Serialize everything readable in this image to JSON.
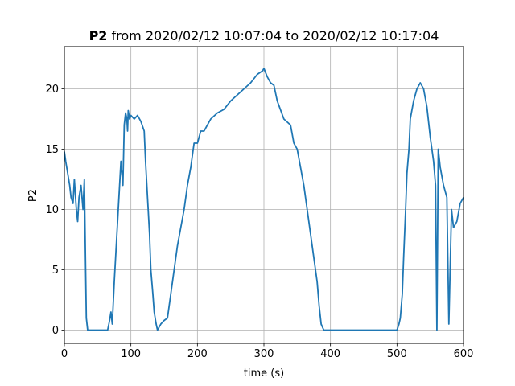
{
  "chart_data": {
    "type": "line",
    "title": {
      "bold_part": "P2",
      "rest": " from 2020/02/12 10:07:04 to 2020/02/12 10:17:04"
    },
    "xlabel": "time (s)",
    "ylabel": "P2",
    "xlim": [
      0,
      600
    ],
    "ylim": [
      -1.1,
      23.5
    ],
    "xticks": [
      0,
      100,
      200,
      300,
      400,
      500,
      600
    ],
    "yticks": [
      0,
      5,
      10,
      15,
      20
    ],
    "grid": true,
    "series_color": "#1f77b4",
    "series": [
      {
        "x": [
          0,
          2,
          5,
          8,
          10,
          13,
          15,
          18,
          20,
          22,
          25,
          28,
          30,
          33,
          35,
          40,
          50,
          60,
          65,
          68,
          70,
          72,
          75,
          80,
          85,
          88,
          90,
          92,
          94,
          95,
          96,
          98,
          100,
          105,
          110,
          115,
          120,
          122,
          125,
          128,
          130,
          133,
          135,
          138,
          140,
          145,
          150,
          155,
          160,
          165,
          170,
          175,
          180,
          185,
          190,
          195,
          200,
          205,
          210,
          220,
          230,
          240,
          250,
          260,
          270,
          280,
          290,
          298,
          300,
          305,
          310,
          315,
          320,
          330,
          340,
          345,
          350,
          355,
          360,
          365,
          370,
          375,
          380,
          383,
          386,
          390,
          400,
          450,
          500,
          503,
          505,
          508,
          510,
          513,
          515,
          518,
          520,
          525,
          530,
          535,
          540,
          545,
          550,
          555,
          558,
          560,
          562,
          565,
          570,
          575,
          578,
          582,
          585,
          590,
          595,
          600
        ],
        "y": [
          14.8,
          14.0,
          13.0,
          12.0,
          11.0,
          10.5,
          12.5,
          10.0,
          9.0,
          11.0,
          12.0,
          10.0,
          12.5,
          1.0,
          0,
          0,
          0,
          0,
          0,
          0.8,
          1.5,
          0.5,
          4.0,
          9.0,
          14.0,
          12.0,
          17.0,
          18.0,
          17.5,
          16.5,
          18.2,
          17.5,
          17.8,
          17.5,
          17.8,
          17.3,
          16.5,
          14.0,
          11.0,
          8.0,
          5.0,
          3.0,
          1.5,
          0.5,
          0,
          0.5,
          0.8,
          1.0,
          3.0,
          5.0,
          7.0,
          8.5,
          10.0,
          12.0,
          13.5,
          15.5,
          15.5,
          16.5,
          16.5,
          17.5,
          18.0,
          18.3,
          19.0,
          19.5,
          20.0,
          20.5,
          21.2,
          21.5,
          21.7,
          21.0,
          20.5,
          20.3,
          19.0,
          17.5,
          17.0,
          15.5,
          15.0,
          13.5,
          12.0,
          10.0,
          8.0,
          6.0,
          4.0,
          2.0,
          0.5,
          0,
          0,
          0,
          0,
          0.5,
          1.0,
          3.0,
          6.0,
          10.0,
          13.0,
          15.0,
          17.5,
          19.0,
          20.0,
          20.5,
          20.0,
          18.5,
          16.0,
          14.0,
          12.0,
          0,
          15.0,
          13.5,
          12.0,
          11.0,
          0.5,
          10.0,
          8.5,
          9.0,
          10.5,
          11.0
        ]
      }
    ]
  }
}
